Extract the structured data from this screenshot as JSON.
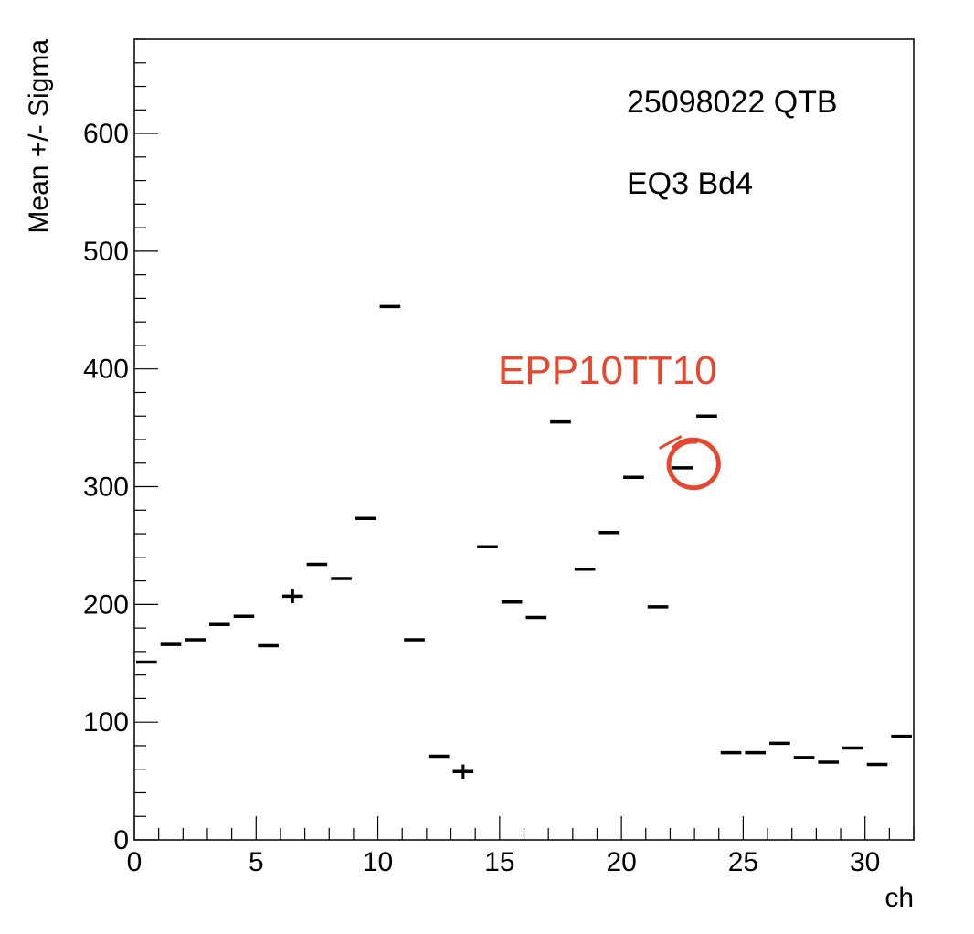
{
  "chart_data": {
    "type": "scatter",
    "xlabel": "ch",
    "ylabel": "Mean +/- Sigma",
    "xlim": [
      0,
      32
    ],
    "ylim": [
      0,
      680
    ],
    "x_ticks": [
      0,
      5,
      10,
      15,
      20,
      25,
      30
    ],
    "y_ticks": [
      0,
      100,
      200,
      300,
      400,
      500,
      600
    ],
    "grid": false,
    "annotations": [
      "25098022 QTB",
      "EQ3 Bd4"
    ],
    "handwritten_note": {
      "text": "EPP10TT10",
      "color": "#e8462f",
      "circled_channel": 22
    },
    "series": [
      {
        "marker_color": "#000000",
        "points": [
          {
            "ch": 0,
            "mean": 151,
            "sigma": 0
          },
          {
            "ch": 1,
            "mean": 166,
            "sigma": 0
          },
          {
            "ch": 2,
            "mean": 170,
            "sigma": 0
          },
          {
            "ch": 3,
            "mean": 183,
            "sigma": 0
          },
          {
            "ch": 4,
            "mean": 190,
            "sigma": 0
          },
          {
            "ch": 5,
            "mean": 165,
            "sigma": 0
          },
          {
            "ch": 6,
            "mean": 207,
            "sigma": 6
          },
          {
            "ch": 7,
            "mean": 234,
            "sigma": 0
          },
          {
            "ch": 8,
            "mean": 222,
            "sigma": 0
          },
          {
            "ch": 9,
            "mean": 273,
            "sigma": 0
          },
          {
            "ch": 10,
            "mean": 453,
            "sigma": 0
          },
          {
            "ch": 11,
            "mean": 170,
            "sigma": 0
          },
          {
            "ch": 12,
            "mean": 71,
            "sigma": 0
          },
          {
            "ch": 13,
            "mean": 58,
            "sigma": 6
          },
          {
            "ch": 14,
            "mean": 249,
            "sigma": 0
          },
          {
            "ch": 15,
            "mean": 202,
            "sigma": 0
          },
          {
            "ch": 16,
            "mean": 189,
            "sigma": 0
          },
          {
            "ch": 17,
            "mean": 355,
            "sigma": 0
          },
          {
            "ch": 18,
            "mean": 230,
            "sigma": 0
          },
          {
            "ch": 19,
            "mean": 261,
            "sigma": 0
          },
          {
            "ch": 20,
            "mean": 308,
            "sigma": 0
          },
          {
            "ch": 21,
            "mean": 198,
            "sigma": 0
          },
          {
            "ch": 22,
            "mean": 316,
            "sigma": 0
          },
          {
            "ch": 23,
            "mean": 360,
            "sigma": 0
          },
          {
            "ch": 24,
            "mean": 74,
            "sigma": 0
          },
          {
            "ch": 25,
            "mean": 74,
            "sigma": 0
          },
          {
            "ch": 26,
            "mean": 82,
            "sigma": 0
          },
          {
            "ch": 27,
            "mean": 70,
            "sigma": 0
          },
          {
            "ch": 28,
            "mean": 66,
            "sigma": 0
          },
          {
            "ch": 29,
            "mean": 78,
            "sigma": 0
          },
          {
            "ch": 30,
            "mean": 64,
            "sigma": 0
          },
          {
            "ch": 31,
            "mean": 88,
            "sigma": 0
          }
        ]
      }
    ]
  }
}
